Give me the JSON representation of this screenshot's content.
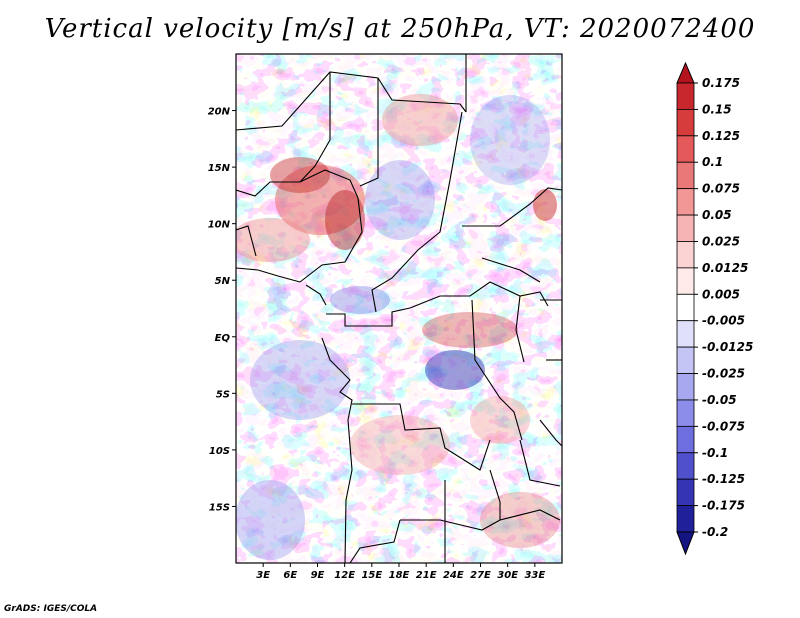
{
  "title": "Vertical velocity [m/s] at 250hPa, VT: 2020072400",
  "credit": "GrADS: IGES/COLA",
  "map": {
    "projection": "latlon",
    "lon_range": [
      0,
      36
    ],
    "lat_range": [
      -20,
      25
    ],
    "lon_ticks": [
      "3E",
      "6E",
      "9E",
      "12E",
      "15E",
      "18E",
      "21E",
      "24E",
      "27E",
      "30E",
      "33E"
    ],
    "lat_ticks": [
      "20N",
      "15N",
      "10N",
      "5N",
      "EQ",
      "5S",
      "10S",
      "15S"
    ],
    "field": "vertical velocity",
    "units": "m/s",
    "level": "250hPa",
    "valid_time": "2020072400"
  },
  "colorbar": {
    "labels": [
      "0.175",
      "0.15",
      "0.125",
      "0.1",
      "0.075",
      "0.05",
      "0.025",
      "0.0125",
      "0.005",
      "-0.005",
      "-0.0125",
      "-0.025",
      "-0.05",
      "-0.075",
      "-0.1",
      "-0.125",
      "-0.175",
      "-0.2"
    ],
    "colors": [
      "#b4141e",
      "#c8282d",
      "#d73c3c",
      "#e45a5a",
      "#eb7878",
      "#f29696",
      "#f7b4b4",
      "#fbd2d2",
      "#ffeaea",
      "#ffffff",
      "#e0e0fb",
      "#c4c4f5",
      "#a8a8f0",
      "#8c8ceb",
      "#6e6ee0",
      "#5050cd",
      "#3434b4",
      "#20209a",
      "#141482"
    ]
  },
  "colors": {
    "positive": "#d73c3c",
    "negative": "#5050cd",
    "border": "#000000"
  }
}
